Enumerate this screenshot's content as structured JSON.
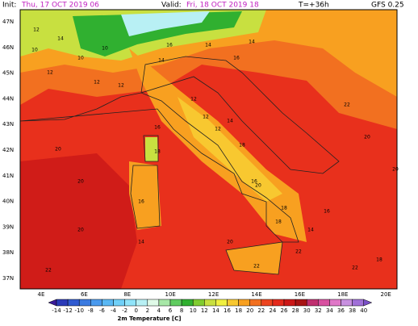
{
  "header": {
    "init_label": "Init:",
    "init_value": "Thu, 17 OCT 2019 06",
    "valid_label": "Valid:",
    "valid_value": "Fri, 18 OCT 2019 18",
    "lead": "T=+36h",
    "model": "GFS 0.25"
  },
  "map": {
    "lat_labels": [
      "47N",
      "46N",
      "45N",
      "44N",
      "43N",
      "42N",
      "41N",
      "40N",
      "39N",
      "38N",
      "37N"
    ],
    "lon_labels": [
      "4E",
      "6E",
      "8E",
      "10E",
      "12E",
      "14E",
      "16E",
      "18E",
      "20E"
    ],
    "station_values": [
      12,
      10,
      14,
      10,
      12,
      12,
      10,
      12,
      14,
      16,
      14,
      16,
      14,
      12,
      20,
      20,
      16,
      18,
      12,
      12,
      14,
      18,
      16,
      20,
      18,
      22,
      20,
      20,
      16,
      14,
      18,
      20,
      22,
      22,
      20,
      22,
      22,
      18,
      14,
      16
    ]
  },
  "colorbar": {
    "title": "2m Temperature [C]",
    "labels": [
      -14,
      -12,
      -10,
      -8,
      -6,
      -4,
      -2,
      0,
      2,
      4,
      6,
      8,
      10,
      12,
      14,
      16,
      18,
      20,
      22,
      24,
      26,
      28,
      30,
      32,
      34,
      36,
      38,
      40
    ],
    "colors": [
      "#3a1a9a",
      "#2a3ab8",
      "#2f5ad0",
      "#3a7ae0",
      "#4a9aee",
      "#5ab8f4",
      "#70d0f8",
      "#90e4fa",
      "#b8f0f4",
      "#e0fae8",
      "#a8e8a8",
      "#60cc60",
      "#30b030",
      "#80cc30",
      "#c8e040",
      "#f0f040",
      "#f8c830",
      "#f8a020",
      "#f27020",
      "#ec4420",
      "#e42a1c",
      "#cc1818",
      "#a81414",
      "#c03070",
      "#d850a0",
      "#e078c8",
      "#c890e0",
      "#a070d8",
      "#7a50c8"
    ]
  }
}
